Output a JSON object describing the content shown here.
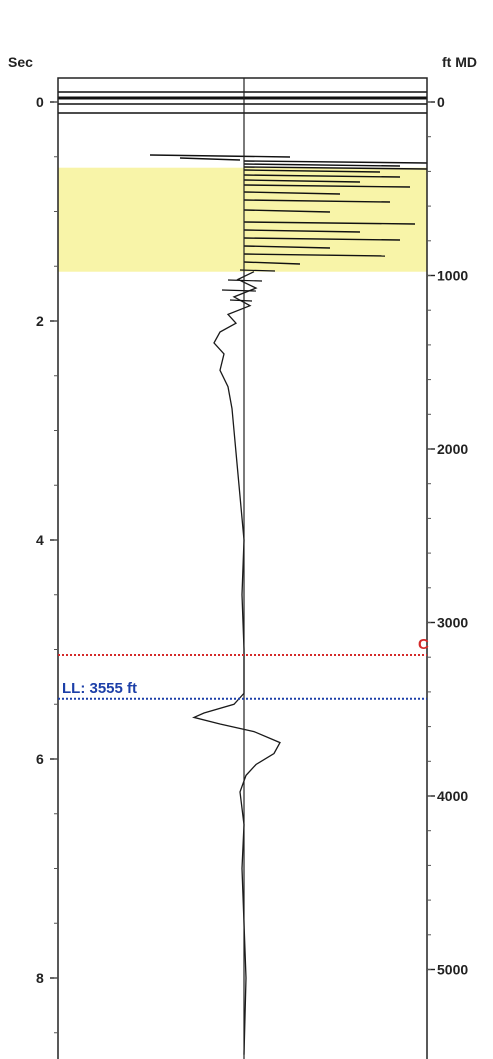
{
  "chart_data": {
    "type": "line",
    "left_axis": {
      "label": "Sec",
      "ticks": [
        0,
        2,
        4,
        6,
        8
      ],
      "range": [
        -0.25,
        8.7
      ]
    },
    "right_axis": {
      "label": "ft MD",
      "ticks": [
        0,
        1000,
        2000,
        3000,
        4000,
        5000
      ],
      "range": [
        -150,
        5200
      ]
    },
    "grid": false,
    "highlight_band": {
      "from_sec": 0.6,
      "to_sec": 1.55,
      "color": "#f8f4a8"
    },
    "markers": [
      {
        "label": "C",
        "sec": 5.05,
        "color": "#d42a2a"
      },
      {
        "label": "LL: 3555 ft",
        "sec": 5.45,
        "color": "#1c3fa8"
      }
    ],
    "trace": {
      "color": "#1a1a1a",
      "points": [
        [
          1.55,
          0.05
        ],
        [
          1.62,
          -0.03
        ],
        [
          1.7,
          0.06
        ],
        [
          1.78,
          -0.05
        ],
        [
          1.86,
          0.03
        ],
        [
          1.94,
          -0.08
        ],
        [
          2.02,
          -0.04
        ],
        [
          2.1,
          -0.12
        ],
        [
          2.2,
          -0.15
        ],
        [
          2.3,
          -0.1
        ],
        [
          2.45,
          -0.12
        ],
        [
          2.6,
          -0.08
        ],
        [
          2.8,
          -0.06
        ],
        [
          3.0,
          -0.05
        ],
        [
          3.2,
          -0.04
        ],
        [
          3.4,
          -0.03
        ],
        [
          3.6,
          -0.02
        ],
        [
          3.8,
          -0.01
        ],
        [
          4.0,
          0.0
        ],
        [
          4.5,
          -0.01
        ],
        [
          5.0,
          0.0
        ],
        [
          5.4,
          0.0
        ],
        [
          5.5,
          -0.05
        ],
        [
          5.58,
          -0.2
        ],
        [
          5.62,
          -0.25
        ],
        [
          5.68,
          -0.12
        ],
        [
          5.75,
          0.05
        ],
        [
          5.85,
          0.18
        ],
        [
          5.95,
          0.15
        ],
        [
          6.05,
          0.06
        ],
        [
          6.15,
          0.01
        ],
        [
          6.3,
          -0.02
        ],
        [
          6.6,
          0.0
        ],
        [
          7.0,
          -0.01
        ],
        [
          7.5,
          0.0
        ],
        [
          8.0,
          0.01
        ],
        [
          8.7,
          0.0
        ]
      ]
    }
  }
}
